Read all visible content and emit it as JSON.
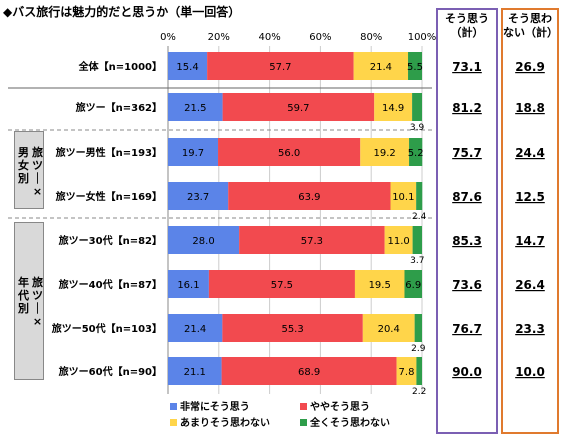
{
  "title": "◆バス旅行は魅力的だと思うか（単一回答）",
  "group_labels": {
    "gender": [
      "旅ツー×",
      "男女別"
    ],
    "age": [
      "旅ツー×",
      "年代別"
    ]
  },
  "summary_headers": {
    "agree": [
      "そう思う",
      "（計）"
    ],
    "disagree": [
      "そう思わ",
      "ない（計）"
    ]
  },
  "colors": {
    "very_agree": "#5b84e8",
    "somewhat_agree": "#f24a4f",
    "not_much": "#ffd54a",
    "not_at_all": "#2e9d4a",
    "agree_box": "#7b5fb3",
    "disagree_box": "#e07a2e"
  },
  "chart_data": {
    "type": "bar",
    "orientation": "horizontal",
    "stacked": true,
    "title": "◆バス旅行は魅力的だと思うか（単一回答）",
    "x_ticks": [
      "0%",
      "20%",
      "40%",
      "60%",
      "80%",
      "100%"
    ],
    "xlim": [
      0,
      100
    ],
    "legend_position": "bottom",
    "categories": [
      "全体【n=1000】",
      "旅ツー【n=362】",
      "旅ツー男性【n=193】",
      "旅ツー女性【n=169】",
      "旅ツー30代【n=82】",
      "旅ツー40代【n=87】",
      "旅ツー50代【n=103】",
      "旅ツー60代【n=90】"
    ],
    "series": [
      {
        "name": "非常にそう思う",
        "values": [
          15.4,
          21.5,
          19.7,
          23.7,
          28.0,
          16.1,
          21.4,
          21.1
        ]
      },
      {
        "name": "ややそう思う",
        "values": [
          57.7,
          59.7,
          56.0,
          63.9,
          57.3,
          57.5,
          55.3,
          68.9
        ]
      },
      {
        "name": "あまりそう思わない",
        "values": [
          21.4,
          14.9,
          19.2,
          10.1,
          11.0,
          19.5,
          20.4,
          7.8
        ]
      },
      {
        "name": "全くそう思わない",
        "values": [
          5.5,
          3.9,
          5.2,
          2.4,
          3.7,
          6.9,
          2.9,
          2.2
        ]
      }
    ],
    "value_labels": [
      [
        "15.4",
        "57.7",
        "21.4",
        "5.5"
      ],
      [
        "21.5",
        "59.7",
        "14.9",
        "3.9"
      ],
      [
        "19.7",
        "56.0",
        "19.2",
        "5.2"
      ],
      [
        "23.7",
        "63.9",
        "10.1",
        "2.4"
      ],
      [
        "28.0",
        "57.3",
        "11.0",
        "3.7"
      ],
      [
        "16.1",
        "57.5",
        "19.5",
        "6.9"
      ],
      [
        "21.4",
        "55.3",
        "20.4",
        "2.9"
      ],
      [
        "21.1",
        "68.9",
        "7.8",
        "2.2"
      ]
    ],
    "agree_total": [
      "73.1",
      "81.2",
      "75.7",
      "87.6",
      "85.3",
      "73.6",
      "76.7",
      "90.0"
    ],
    "disagree_total": [
      "26.9",
      "18.8",
      "24.4",
      "12.5",
      "14.7",
      "26.4",
      "23.3",
      "10.0"
    ]
  }
}
